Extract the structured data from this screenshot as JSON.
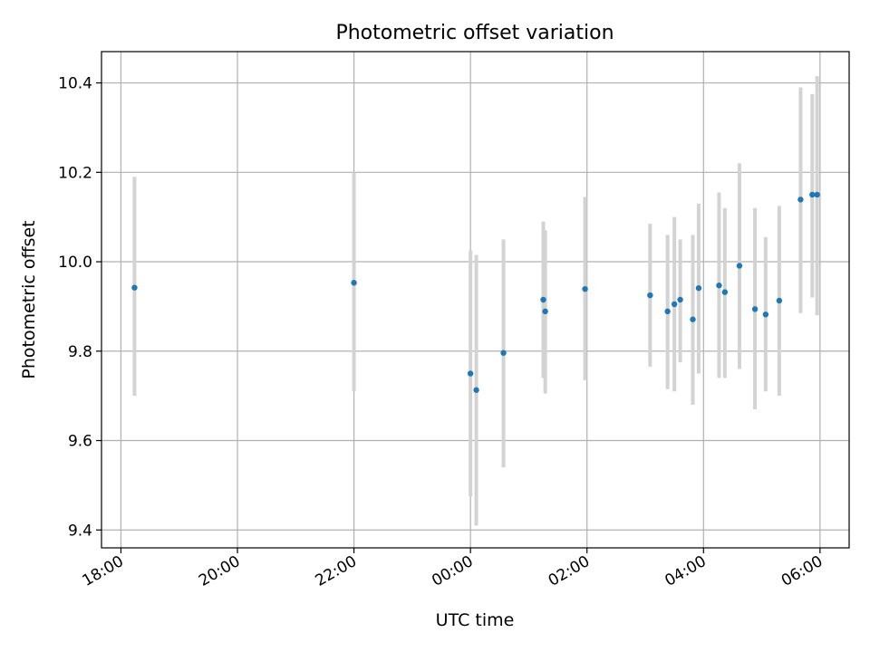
{
  "chart_data": {
    "type": "scatter",
    "title": "Photometric offset variation",
    "xlabel": "UTC time",
    "ylabel": "Photometric offset",
    "x_axis": {
      "kind": "time",
      "range": [
        "17:40",
        "06:30"
      ],
      "ticks": [
        "18:00",
        "20:00",
        "22:00",
        "00:00",
        "02:00",
        "04:00",
        "06:00"
      ]
    },
    "ylim": [
      9.36,
      10.47
    ],
    "y_ticks": [
      "9.4",
      "9.6",
      "9.8",
      "10.0",
      "10.2",
      "10.4"
    ],
    "grid": true,
    "colors": {
      "point": "#1f77b4",
      "errorbar": "#d3d3d3"
    },
    "series": [
      {
        "points": [
          {
            "t": "18:14",
            "y": 9.942,
            "lo": 9.7,
            "hi": 10.19
          },
          {
            "t": "22:00",
            "y": 9.953,
            "lo": 9.71,
            "hi": 10.2
          },
          {
            "t": "00:00",
            "y": 9.75,
            "lo": 9.475,
            "hi": 10.025
          },
          {
            "t": "00:06",
            "y": 9.713,
            "lo": 9.41,
            "hi": 10.015
          },
          {
            "t": "00:34",
            "y": 9.796,
            "lo": 9.54,
            "hi": 10.05
          },
          {
            "t": "01:15",
            "y": 9.915,
            "lo": 9.74,
            "hi": 10.09
          },
          {
            "t": "01:17",
            "y": 9.889,
            "lo": 9.705,
            "hi": 10.07
          },
          {
            "t": "01:58",
            "y": 9.939,
            "lo": 9.735,
            "hi": 10.145
          },
          {
            "t": "03:05",
            "y": 9.925,
            "lo": 9.765,
            "hi": 10.085
          },
          {
            "t": "03:23",
            "y": 9.889,
            "lo": 9.715,
            "hi": 10.06
          },
          {
            "t": "03:30",
            "y": 9.905,
            "lo": 9.71,
            "hi": 10.1
          },
          {
            "t": "03:36",
            "y": 9.915,
            "lo": 9.775,
            "hi": 10.05
          },
          {
            "t": "03:49",
            "y": 9.871,
            "lo": 9.68,
            "hi": 10.06
          },
          {
            "t": "03:55",
            "y": 9.941,
            "lo": 9.75,
            "hi": 10.13
          },
          {
            "t": "04:16",
            "y": 9.947,
            "lo": 9.74,
            "hi": 10.155
          },
          {
            "t": "04:22",
            "y": 9.932,
            "lo": 9.74,
            "hi": 10.12
          },
          {
            "t": "04:37",
            "y": 9.991,
            "lo": 9.76,
            "hi": 10.22
          },
          {
            "t": "04:53",
            "y": 9.894,
            "lo": 9.67,
            "hi": 10.12
          },
          {
            "t": "05:04",
            "y": 9.882,
            "lo": 9.71,
            "hi": 10.055
          },
          {
            "t": "05:18",
            "y": 9.913,
            "lo": 9.7,
            "hi": 10.125
          },
          {
            "t": "05:40",
            "y": 10.139,
            "lo": 9.885,
            "hi": 10.39
          },
          {
            "t": "05:52",
            "y": 10.15,
            "lo": 9.92,
            "hi": 10.375
          },
          {
            "t": "05:57",
            "y": 10.15,
            "lo": 9.88,
            "hi": 10.415
          }
        ]
      }
    ]
  }
}
